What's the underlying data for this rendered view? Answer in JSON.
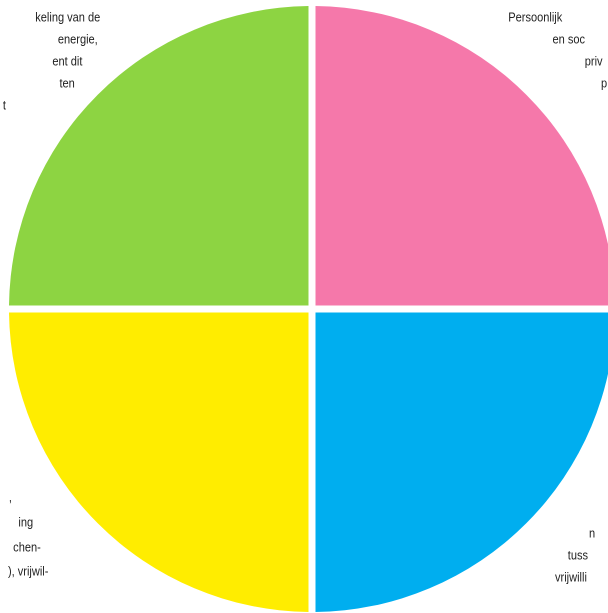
{
  "quadrants": [
    {
      "lines": [
        "keling van de",
        "energie,",
        "ent dit",
        "ten",
        "t"
      ]
    },
    {
      "lines": [
        "Persoonlijk",
        "en  soc",
        "priv",
        "p"
      ]
    },
    {
      "lines": [
        ",",
        "ing",
        "chen-",
        "),  vrijwil-"
      ]
    },
    {
      "lines": [
        "n",
        "tuss",
        "vrijwilli"
      ]
    }
  ]
}
